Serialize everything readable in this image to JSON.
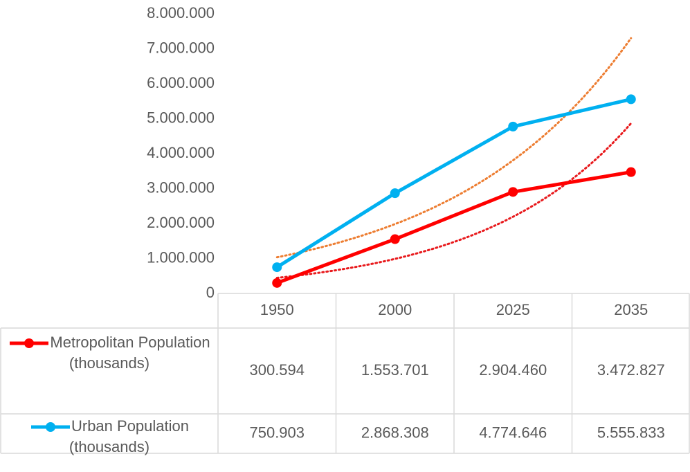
{
  "chart_data": {
    "type": "line",
    "categories": [
      "1950",
      "2000",
      "2025",
      "2035"
    ],
    "series": [
      {
        "name": "Metropolitan Population (thousands)",
        "color": "#ff0000",
        "trendline": "exponential",
        "trendline_color": "#e8191c",
        "values": [
          300594,
          1553701,
          2904460,
          3472827
        ],
        "value_labels": [
          "300.594",
          "1.553.701",
          "2.904.460",
          "3.472.827"
        ]
      },
      {
        "name": "Urban Population (thousands)",
        "color": "#00b0f0",
        "trendline": "exponential",
        "trendline_color": "#ed7d31",
        "values": [
          750903,
          2868308,
          4774646,
          5555833
        ],
        "value_labels": [
          "750.903",
          "2.868.308",
          "4.774.646",
          "5.555.833"
        ]
      }
    ],
    "ylim": [
      0,
      8000000
    ],
    "yticks": [
      0,
      {
        "value": 1000000,
        "label": "1.000.000"
      },
      {
        "value": 2000000,
        "label": "2.000.000"
      },
      {
        "value": 3000000,
        "label": "3.000.000"
      },
      {
        "value": 4000000,
        "label": "4.000.000"
      },
      {
        "value": 5000000,
        "label": "5.000.000"
      },
      {
        "value": 6000000,
        "label": "6.000.000"
      },
      {
        "value": 7000000,
        "label": "7.000.000"
      },
      {
        "value": 8000000,
        "label": "8.000.000"
      }
    ],
    "grid": false,
    "data_table": true
  }
}
